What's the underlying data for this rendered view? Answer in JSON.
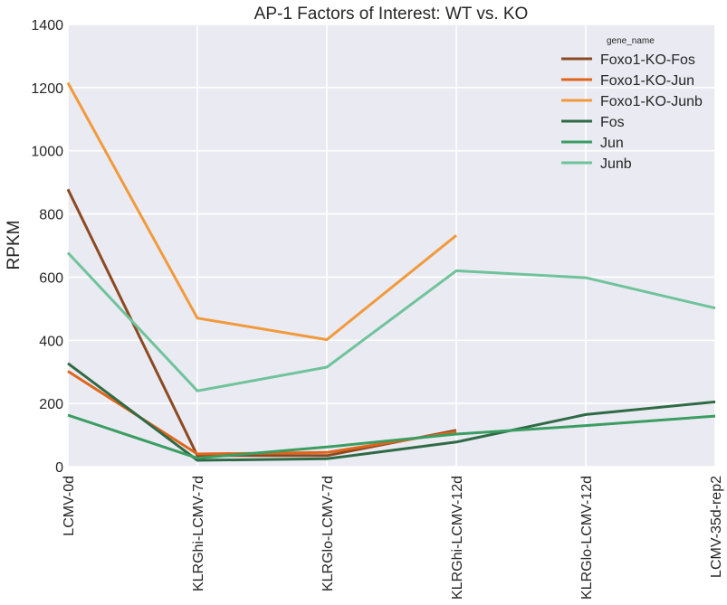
{
  "chart_data": {
    "type": "line",
    "title": "AP-1 Factors of Interest: WT vs. KO",
    "xlabel": "",
    "ylabel": "RPKM",
    "categories": [
      "LCMV-0d",
      "KLRGhi-LCMV-7d",
      "KLRGlo-LCMV-7d",
      "KLRGhi-LCMV-12d",
      "KLRGlo-LCMV-12d",
      "LCMV-35d-rep2"
    ],
    "ylim": [
      0,
      1400
    ],
    "yticks": [
      0,
      200,
      400,
      600,
      800,
      1000,
      1200,
      1400
    ],
    "grid": true,
    "legend_title": "gene_name",
    "legend_position": "top-right",
    "series": [
      {
        "name": "Foxo1-KO-Fos",
        "color": "#8c4a22",
        "values": [
          878,
          35,
          35,
          115,
          null,
          null
        ]
      },
      {
        "name": "Foxo1-KO-Jun",
        "color": "#e0651b",
        "values": [
          302,
          40,
          45,
          110,
          null,
          null
        ]
      },
      {
        "name": "Foxo1-KO-Junb",
        "color": "#f19a3c",
        "values": [
          1215,
          470,
          402,
          732,
          null,
          null
        ]
      },
      {
        "name": "Fos",
        "color": "#2f6a45",
        "values": [
          327,
          20,
          25,
          78,
          165,
          205
        ]
      },
      {
        "name": "Jun",
        "color": "#3a9d62",
        "values": [
          163,
          27,
          62,
          103,
          130,
          160
        ]
      },
      {
        "name": "Junb",
        "color": "#6fc39b",
        "values": [
          677,
          240,
          315,
          620,
          598,
          502
        ]
      }
    ]
  }
}
